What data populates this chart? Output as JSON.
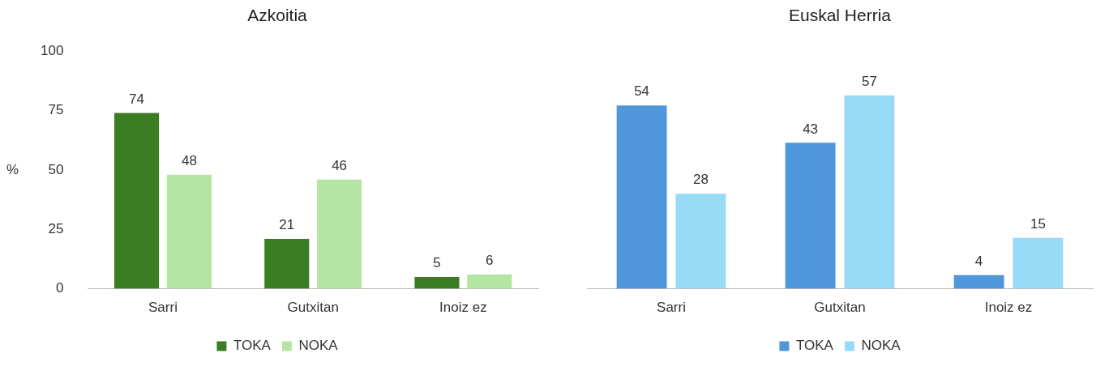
{
  "chart_data": [
    {
      "type": "bar",
      "title": "Azkoitia",
      "ylabel": "%",
      "categories": [
        "Sarri",
        "Gutxitan",
        "Inoiz ez"
      ],
      "series": [
        {
          "name": "TOKA",
          "color": "#3a7d22",
          "values": [
            74,
            21,
            5
          ]
        },
        {
          "name": "NOKA",
          "color": "#b5e5a2",
          "values": [
            48,
            46,
            6
          ]
        }
      ],
      "ylim": [
        0,
        100
      ],
      "yticks": [
        0,
        25,
        50,
        75,
        100
      ],
      "grid": false,
      "legend": "bottom",
      "data_labels": true
    },
    {
      "type": "bar",
      "title": "Euskal Herria",
      "categories": [
        "Sarri",
        "Gutxitan",
        "Inoiz ez"
      ],
      "series": [
        {
          "name": "TOKA",
          "color": "#4f97db",
          "values": [
            54,
            43,
            4
          ]
        },
        {
          "name": "NOKA",
          "color": "#98dbf6",
          "values": [
            28,
            57,
            15
          ]
        }
      ],
      "tick_labels": "x",
      "grid": false,
      "legend": "bottom",
      "data_labels": true
    }
  ]
}
